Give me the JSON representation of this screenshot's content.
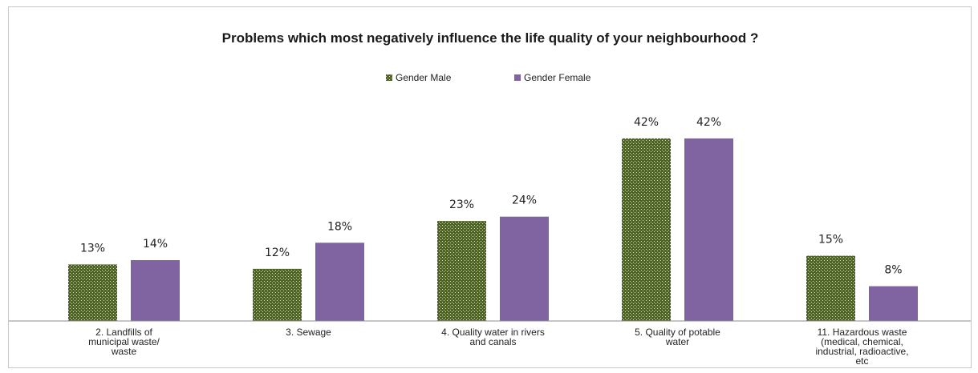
{
  "chart_data": {
    "type": "bar",
    "title": "Problems which most negatively influence the life quality of your neighbourhood ?",
    "categories": [
      "2. Landfills of municipal waste/ waste",
      "3. Sewage",
      "4. Quality water in rivers and canals",
      "5. Quality of potable water",
      "11. Hazardous waste (medical, chemical, industrial, radioactive, etc"
    ],
    "category_lines": [
      [
        "2. Landfills of",
        "municipal waste/",
        "waste"
      ],
      [
        "3. Sewage"
      ],
      [
        "4. Quality water in rivers",
        "and canals"
      ],
      [
        "5. Quality of potable",
        "water"
      ],
      [
        "11. Hazardous waste",
        "(medical, chemical,",
        "industrial, radioactive,",
        "etc"
      ]
    ],
    "series": [
      {
        "name": "Gender Male",
        "values": [
          13,
          12,
          23,
          42,
          15
        ],
        "labels": [
          "13%",
          "12%",
          "23%",
          "42%",
          "15%"
        ],
        "color": "#4f6228",
        "pattern": "dotted"
      },
      {
        "name": "Gender Female",
        "values": [
          14,
          18,
          24,
          42,
          8
        ],
        "labels": [
          "14%",
          "18%",
          "24%",
          "42%",
          "8%"
        ],
        "color": "#8064a2",
        "pattern": "solid"
      }
    ],
    "unit": "%",
    "ylim": [
      0,
      45
    ],
    "grid": false,
    "legend": "top-center"
  }
}
